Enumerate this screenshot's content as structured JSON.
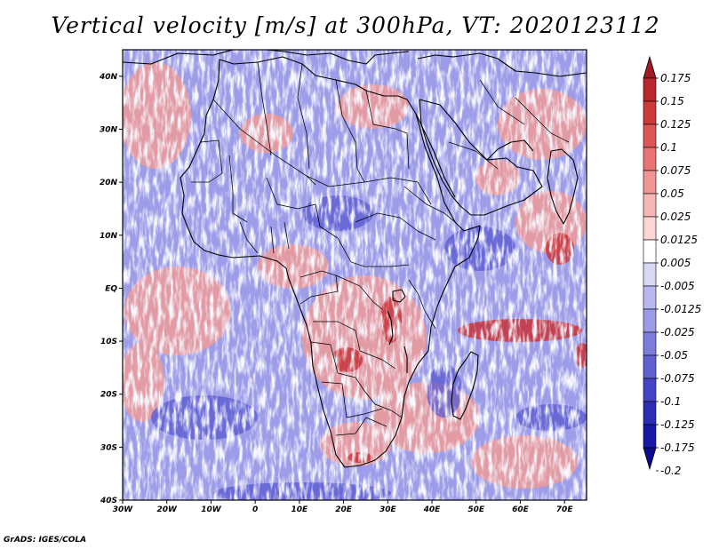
{
  "map": {
    "title": "Vertical velocity [m/s] at 300hPa, VT: 2020123112",
    "variable": "Vertical velocity",
    "units": "m/s",
    "level": "300hPa",
    "valid_time": "2020123112",
    "lon_range": [
      -30,
      75
    ],
    "lat_range": [
      -40,
      45
    ],
    "lon_ticks": [
      "30W",
      "20W",
      "10W",
      "0",
      "10E",
      "20E",
      "30E",
      "40E",
      "50E",
      "60E",
      "70E"
    ],
    "lat_ticks": [
      "40N",
      "30N",
      "20N",
      "10N",
      "EQ",
      "10S",
      "20S",
      "30S",
      "40S"
    ],
    "credit": "GrADS: IGES/COLA"
  },
  "colorbar": {
    "labels": [
      "0.175",
      "0.15",
      "0.125",
      "0.1",
      "0.075",
      "0.05",
      "0.025",
      "0.0125",
      "0.005",
      "-0.005",
      "-0.0125",
      "-0.025",
      "-0.05",
      "-0.075",
      "-0.1",
      "-0.125",
      "-0.175",
      "-0.2"
    ],
    "colors": [
      "#a01c24",
      "#b8282e",
      "#cc3a3c",
      "#dc5656",
      "#e87474",
      "#f09494",
      "#f6b6b4",
      "#fbd6d4",
      "#ffffff",
      "#d8d8f6",
      "#b8b8ee",
      "#9a9ae6",
      "#7c7cdc",
      "#6060d0",
      "#4444c4",
      "#2c2cb4",
      "#1818a4",
      "#0c0c8c"
    ]
  }
}
